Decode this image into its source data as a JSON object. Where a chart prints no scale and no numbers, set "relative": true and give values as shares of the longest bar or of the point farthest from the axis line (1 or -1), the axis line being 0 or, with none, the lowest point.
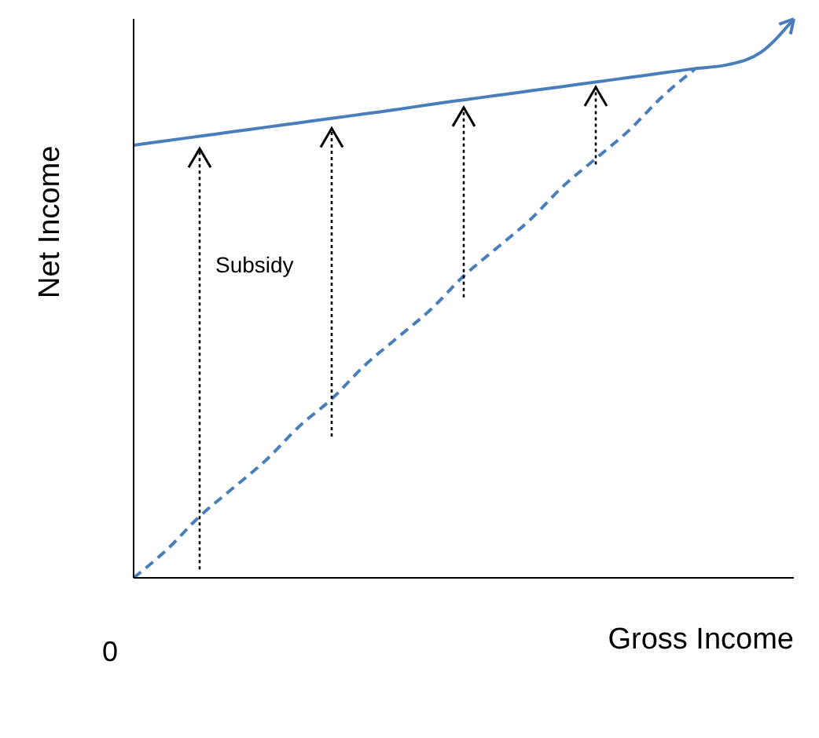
{
  "chart_data": {
    "type": "line",
    "relative": true,
    "xlabel": "Gross Income",
    "ylabel": "Net Income",
    "categories": [
      null,
      null,
      null,
      null,
      null,
      null,
      null,
      null,
      null,
      null,
      null,
      null,
      null,
      null,
      null,
      null,
      null,
      null,
      null,
      null,
      null
    ],
    "marker": "none",
    "series": [
      {
        "color": "#4a7ebb",
        "line_style": "solid",
        "values": [
          0.774,
          0.782,
          0.79,
          0.798,
          0.806,
          0.814,
          0.822,
          0.83,
          0.838,
          0.847,
          0.855,
          0.863,
          0.871,
          0.879,
          0.887,
          0.895,
          0.903,
          0.911,
          0.918,
          0.94,
          1
        ]
      },
      {
        "color": "#4a7ebb",
        "line_style": "dashed",
        "values": [
          0,
          0.05,
          0.11,
          0.16,
          0.21,
          0.27,
          0.32,
          0.38,
          0.43,
          0.48,
          0.54,
          0.59,
          0.64,
          0.7,
          0.75,
          0.8,
          0.86,
          0.91,
          null,
          null,
          null
        ]
      }
    ],
    "annotations": [
      "Subsidy",
      "0"
    ]
  }
}
